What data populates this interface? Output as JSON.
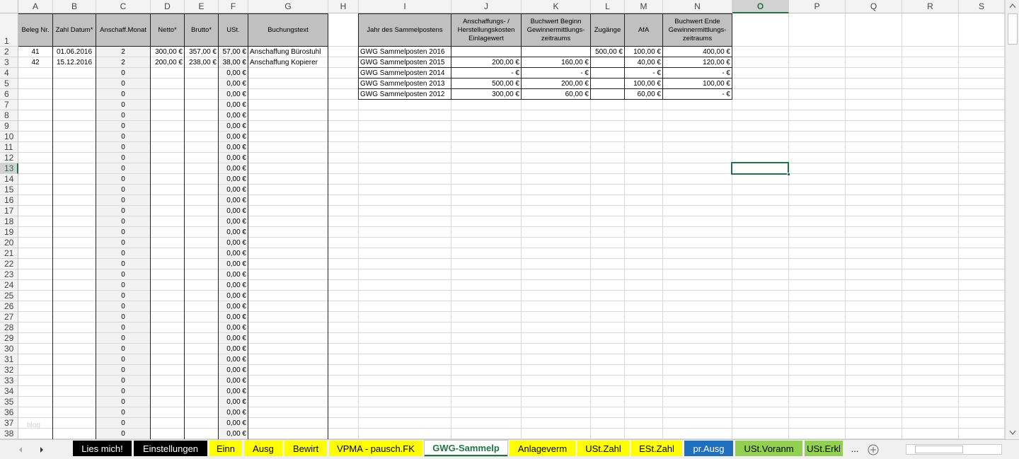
{
  "columns": [
    "A",
    "B",
    "C",
    "D",
    "E",
    "F",
    "G",
    "H",
    "I",
    "J",
    "K",
    "L",
    "M",
    "N",
    "O",
    "P",
    "Q",
    "R",
    "S"
  ],
  "row_numbers": [
    1,
    2,
    3,
    4,
    5,
    6,
    7,
    8,
    9,
    10,
    11,
    12,
    13,
    14,
    15,
    16,
    17,
    18,
    19,
    20,
    21,
    22,
    23,
    24,
    25,
    26,
    27,
    28,
    29,
    30,
    31,
    32,
    33,
    34,
    35,
    36,
    37,
    38
  ],
  "left_table": {
    "headers": [
      "Beleg Nr.",
      "Zahl Datum*",
      "Anschaff.Monat",
      "Netto*",
      "Brutto*",
      "USt.",
      "Buchungstext"
    ],
    "rows": [
      [
        41,
        "01.06.2016",
        2,
        "300,00 €",
        "357,00 €",
        "57,00 €",
        "Anschaffung Bürostuhl"
      ],
      [
        42,
        "15.12.2016",
        2,
        "200,00 €",
        "238,00 €",
        "38,00 €",
        "Anschaffung Kopierer"
      ],
      [
        null,
        null,
        0,
        null,
        null,
        "0,00 €",
        null
      ],
      [
        null,
        null,
        0,
        null,
        null,
        "0,00 €",
        null
      ],
      [
        null,
        null,
        0,
        null,
        null,
        "0,00 €",
        null
      ],
      [
        null,
        null,
        0,
        null,
        null,
        "0,00 €",
        null
      ],
      [
        null,
        null,
        0,
        null,
        null,
        "0,00 €",
        null
      ],
      [
        null,
        null,
        0,
        null,
        null,
        "0,00 €",
        null
      ],
      [
        null,
        null,
        0,
        null,
        null,
        "0,00 €",
        null
      ],
      [
        null,
        null,
        0,
        null,
        null,
        "0,00 €",
        null
      ],
      [
        null,
        null,
        0,
        null,
        null,
        "0,00 €",
        null
      ],
      [
        null,
        null,
        0,
        null,
        null,
        "0,00 €",
        null
      ],
      [
        null,
        null,
        0,
        null,
        null,
        "0,00 €",
        null
      ],
      [
        null,
        null,
        0,
        null,
        null,
        "0,00 €",
        null
      ],
      [
        null,
        null,
        0,
        null,
        null,
        "0,00 €",
        null
      ],
      [
        null,
        null,
        0,
        null,
        null,
        "0,00 €",
        null
      ],
      [
        null,
        null,
        0,
        null,
        null,
        "0,00 €",
        null
      ],
      [
        null,
        null,
        0,
        null,
        null,
        "0,00 €",
        null
      ],
      [
        null,
        null,
        0,
        null,
        null,
        "0,00 €",
        null
      ],
      [
        null,
        null,
        0,
        null,
        null,
        "0,00 €",
        null
      ],
      [
        null,
        null,
        0,
        null,
        null,
        "0,00 €",
        null
      ],
      [
        null,
        null,
        0,
        null,
        null,
        "0,00 €",
        null
      ],
      [
        null,
        null,
        0,
        null,
        null,
        "0,00 €",
        null
      ],
      [
        null,
        null,
        0,
        null,
        null,
        "0,00 €",
        null
      ],
      [
        null,
        null,
        0,
        null,
        null,
        "0,00 €",
        null
      ],
      [
        null,
        null,
        0,
        null,
        null,
        "0,00 €",
        null
      ],
      [
        null,
        null,
        0,
        null,
        null,
        "0,00 €",
        null
      ],
      [
        null,
        null,
        0,
        null,
        null,
        "0,00 €",
        null
      ],
      [
        null,
        null,
        0,
        null,
        null,
        "0,00 €",
        null
      ],
      [
        null,
        null,
        0,
        null,
        null,
        "0,00 €",
        null
      ],
      [
        null,
        null,
        0,
        null,
        null,
        "0,00 €",
        null
      ],
      [
        null,
        null,
        0,
        null,
        null,
        "0,00 €",
        null
      ],
      [
        null,
        null,
        0,
        null,
        null,
        "0,00 €",
        null
      ],
      [
        null,
        null,
        0,
        null,
        null,
        "0,00 €",
        null
      ],
      [
        null,
        null,
        0,
        null,
        null,
        "0,00 €",
        null
      ],
      [
        null,
        null,
        0,
        null,
        null,
        "0,00 €",
        null
      ],
      [
        null,
        null,
        0,
        null,
        null,
        "0,00 €",
        null
      ]
    ]
  },
  "right_table": {
    "headers": [
      "Jahr des Sammelpostens",
      "Anschaffungs- / Herstellungskosten Einlagewert",
      "Buchwert Beginn Gewinnermittlungs-zeitraums",
      "Zugänge",
      "AfA",
      "Buchwert Ende Gewinnermittlungs-zeitraums"
    ],
    "rows": [
      [
        "GWG Sammelposten 2016",
        null,
        null,
        "500,00 €",
        "100,00 €",
        "400,00 €"
      ],
      [
        "GWG Sammelposten 2015",
        "200,00 €",
        "160,00 €",
        null,
        "40,00 €",
        "120,00 €"
      ],
      [
        "GWG Sammelposten 2014",
        "-   €",
        "-   €",
        null,
        "-   €",
        "-   €"
      ],
      [
        "GWG Sammelposten 2013",
        "500,00 €",
        "200,00 €",
        null,
        "100,00 €",
        "100,00 €"
      ],
      [
        "GWG Sammelposten 2012",
        "300,00 €",
        "60,00 €",
        null,
        "60,00 €",
        "-   €"
      ]
    ]
  },
  "watermark": "blog",
  "tabs": [
    {
      "label": "Lies mich!",
      "color": "#000000",
      "text_color": "#ffffff"
    },
    {
      "label": "Einstellungen",
      "color": "#000000",
      "text_color": "#ffffff"
    },
    {
      "label": "Einn",
      "color": "#ffff00",
      "text_color": "#000000"
    },
    {
      "label": "Ausg",
      "color": "#ffff00",
      "text_color": "#000000"
    },
    {
      "label": "Bewirt",
      "color": "#ffff00",
      "text_color": "#000000"
    },
    {
      "label": "VPMA - pausch.FK",
      "color": "#ffff00",
      "text_color": "#000000"
    },
    {
      "label": "GWG-Sammelp",
      "color": "#ffffff",
      "text_color": "#217346",
      "active": true
    },
    {
      "label": "Anlageverm",
      "color": "#ffff00",
      "text_color": "#000000"
    },
    {
      "label": "USt.Zahl",
      "color": "#ffff00",
      "text_color": "#000000"
    },
    {
      "label": "ESt.Zahl",
      "color": "#ffff00",
      "text_color": "#000000"
    },
    {
      "label": "pr.Ausg",
      "color": "#1f6fbf",
      "text_color": "#ffffff"
    },
    {
      "label": "USt.Voranm",
      "color": "#92d050",
      "text_color": "#000000"
    },
    {
      "label": "USt.Erkl",
      "color": "#92d050",
      "text_color": "#000000"
    }
  ],
  "more_tabs": "..."
}
